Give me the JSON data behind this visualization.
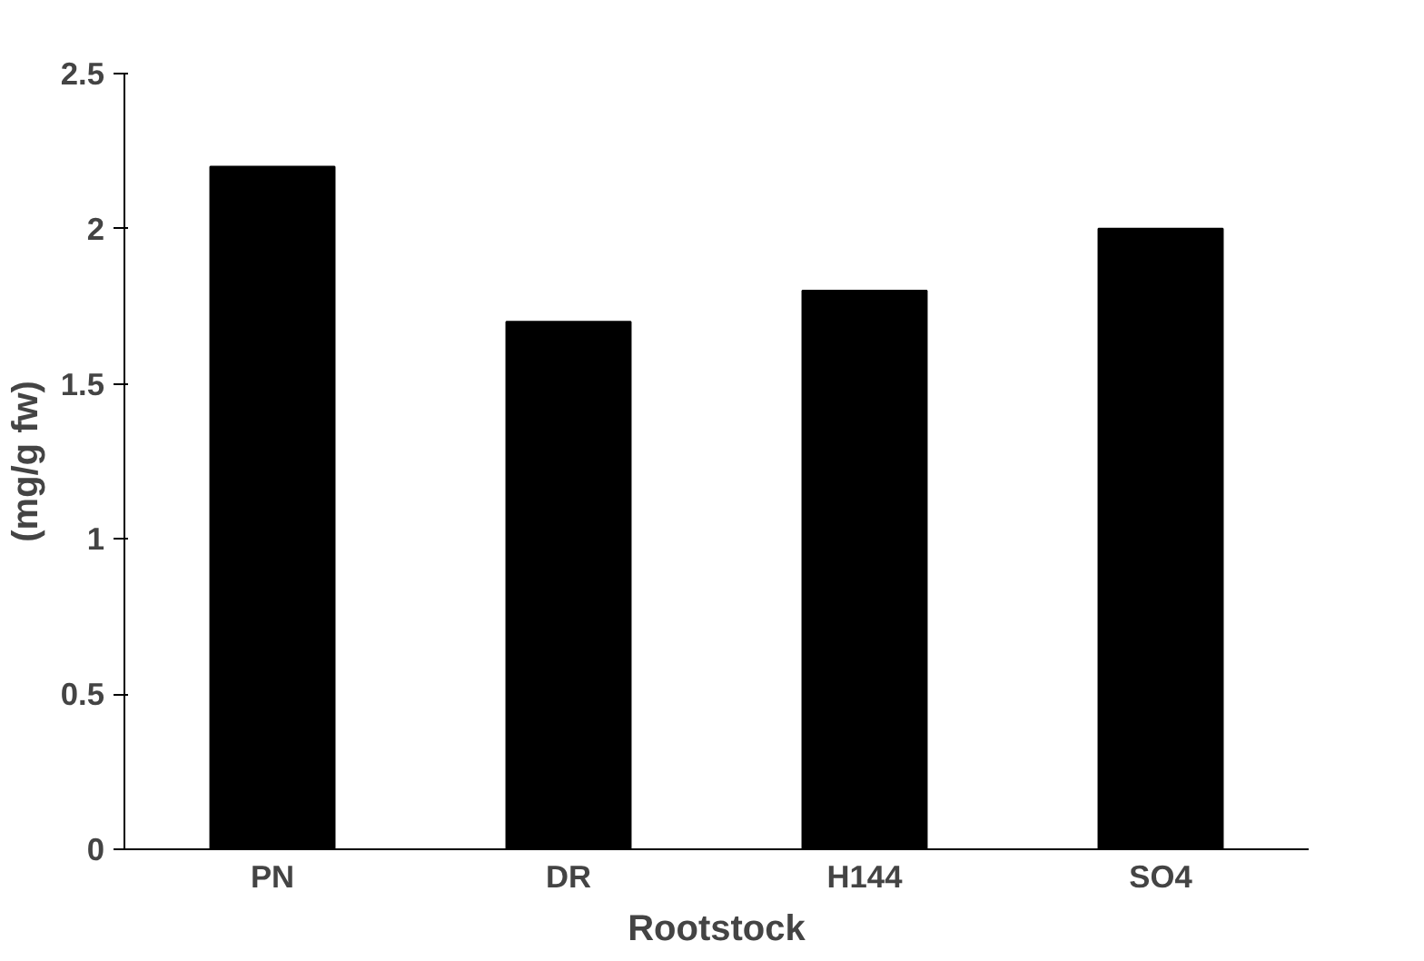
{
  "chart_data": {
    "type": "bar",
    "xlabel": "Rootstock",
    "ylabel": "(mg/g fw)",
    "categories": [
      "PN",
      "DR",
      "H144",
      "SO4"
    ],
    "values": [
      2.2,
      1.7,
      1.8,
      2.0
    ],
    "color": "#000000",
    "ylim": [
      0,
      2.5
    ],
    "yticks": [
      0,
      0.5,
      1,
      1.5,
      2,
      2.5
    ],
    "grid": false
  }
}
